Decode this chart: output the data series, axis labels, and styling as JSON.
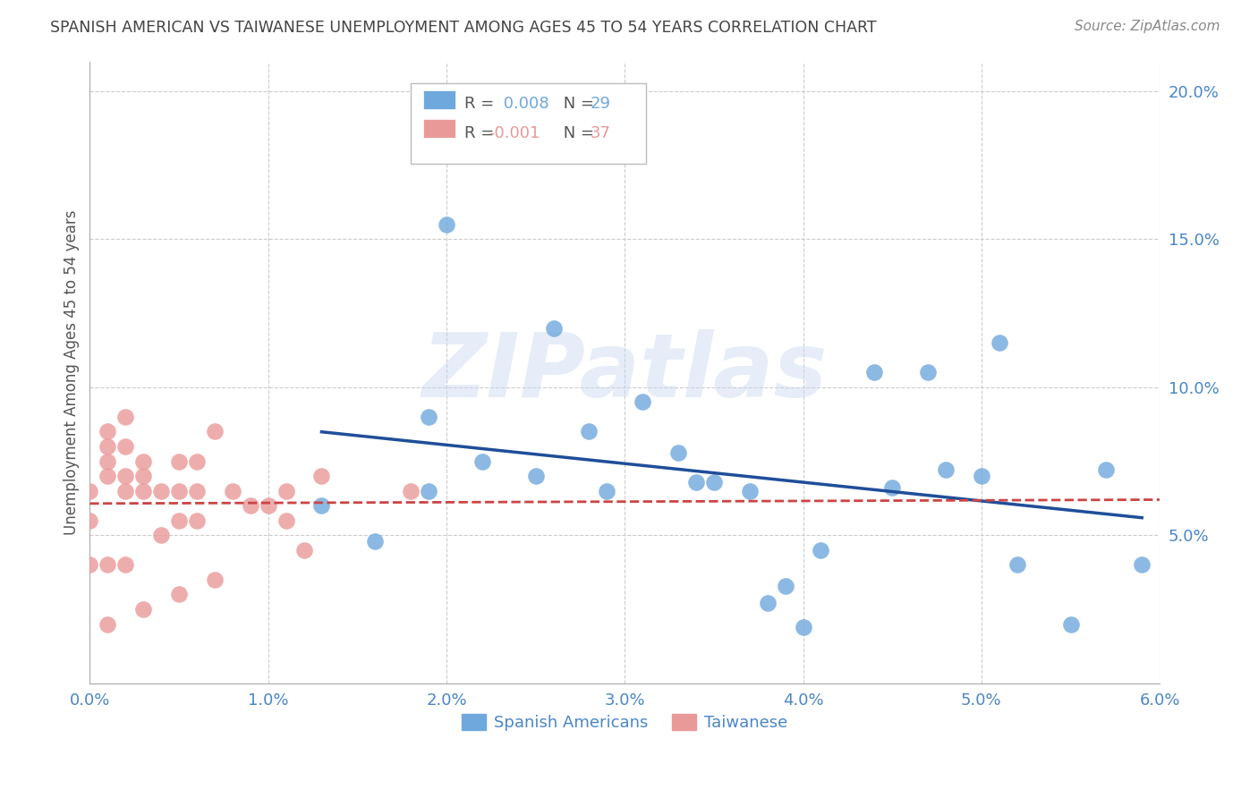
{
  "title": "SPANISH AMERICAN VS TAIWANESE UNEMPLOYMENT AMONG AGES 45 TO 54 YEARS CORRELATION CHART",
  "source": "Source: ZipAtlas.com",
  "ylabel": "Unemployment Among Ages 45 to 54 years",
  "watermark": "ZIPatlas",
  "legend_label_blue": "Spanish Americans",
  "legend_label_pink": "Taiwanese",
  "xlim": [
    0.0,
    0.06
  ],
  "ylim": [
    0.0,
    0.21
  ],
  "xticks": [
    0.0,
    0.01,
    0.02,
    0.03,
    0.04,
    0.05,
    0.06
  ],
  "xtick_labels": [
    "0.0%",
    "1.0%",
    "2.0%",
    "3.0%",
    "4.0%",
    "5.0%",
    "6.0%"
  ],
  "yticks": [
    0.0,
    0.05,
    0.1,
    0.15,
    0.2
  ],
  "ytick_labels": [
    "",
    "5.0%",
    "10.0%",
    "15.0%",
    "20.0%"
  ],
  "blue_color": "#6fa8dc",
  "pink_color": "#ea9999",
  "trend_blue_color": "#1f4e99",
  "trend_pink_color": "#cc4444",
  "axis_color": "#4a86c8",
  "grid_color": "#cccccc",
  "blue_x": [
    0.013,
    0.016,
    0.019,
    0.019,
    0.02,
    0.022,
    0.025,
    0.026,
    0.028,
    0.029,
    0.031,
    0.033,
    0.034,
    0.035,
    0.037,
    0.038,
    0.039,
    0.04,
    0.041,
    0.044,
    0.045,
    0.047,
    0.048,
    0.05,
    0.051,
    0.052,
    0.055,
    0.057,
    0.059
  ],
  "blue_y": [
    0.06,
    0.048,
    0.09,
    0.065,
    0.155,
    0.075,
    0.07,
    0.12,
    0.085,
    0.065,
    0.095,
    0.078,
    0.068,
    0.068,
    0.065,
    0.027,
    0.033,
    0.019,
    0.045,
    0.105,
    0.066,
    0.105,
    0.072,
    0.07,
    0.115,
    0.04,
    0.02,
    0.072,
    0.04
  ],
  "pink_x": [
    0.0,
    0.0,
    0.0,
    0.001,
    0.001,
    0.001,
    0.001,
    0.001,
    0.001,
    0.002,
    0.002,
    0.002,
    0.002,
    0.002,
    0.003,
    0.003,
    0.003,
    0.003,
    0.004,
    0.004,
    0.005,
    0.005,
    0.005,
    0.005,
    0.006,
    0.006,
    0.006,
    0.007,
    0.007,
    0.008,
    0.009,
    0.01,
    0.011,
    0.011,
    0.012,
    0.013,
    0.018
  ],
  "pink_y": [
    0.065,
    0.055,
    0.04,
    0.085,
    0.08,
    0.075,
    0.07,
    0.04,
    0.02,
    0.09,
    0.08,
    0.07,
    0.065,
    0.04,
    0.075,
    0.07,
    0.065,
    0.025,
    0.065,
    0.05,
    0.075,
    0.065,
    0.055,
    0.03,
    0.075,
    0.065,
    0.055,
    0.085,
    0.035,
    0.065,
    0.06,
    0.06,
    0.065,
    0.055,
    0.045,
    0.07,
    0.065
  ],
  "blue_trend_start_x": 0.013,
  "blue_trend_end_x": 0.059,
  "blue_trend_y": 0.07,
  "pink_trend_start_x": 0.0,
  "pink_trend_end_x": 0.06,
  "pink_trend_y": 0.051
}
